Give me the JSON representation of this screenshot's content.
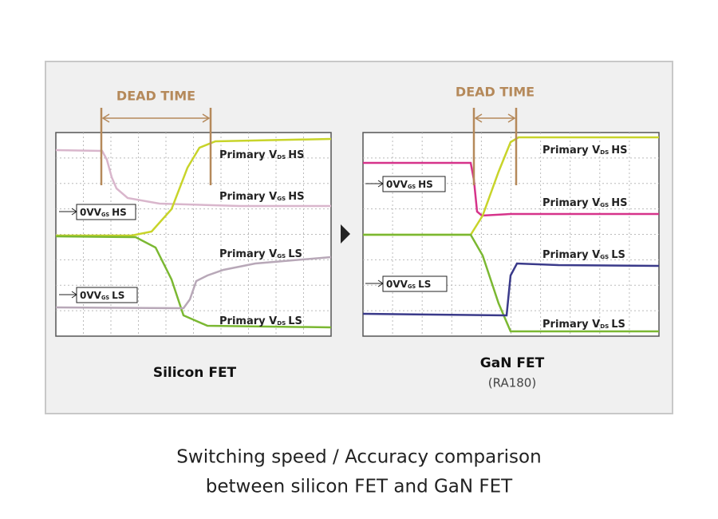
{
  "panels": [
    {
      "dead_time": "DEAD TIME",
      "labels": [
        {
          "prefix": "Primary V",
          "sub": "DS",
          "suffix": "HS"
        },
        {
          "prefix": "Primary V",
          "sub": "GS",
          "suffix": "HS"
        },
        {
          "prefix": "Primary V",
          "sub": "GS",
          "suffix": "LS"
        },
        {
          "prefix": "Primary V",
          "sub": "DS",
          "suffix": "LS"
        }
      ],
      "markers": [
        {
          "prefix": "0VV",
          "sub": "GS",
          "suffix": "HS"
        },
        {
          "prefix": "0VV",
          "sub": "GS",
          "suffix": "LS"
        }
      ],
      "title": "Silicon FET"
    },
    {
      "dead_time": "DEAD TIME",
      "labels": [
        {
          "prefix": "Primary V",
          "sub": "DS",
          "suffix": "HS"
        },
        {
          "prefix": "Primary V",
          "sub": "GS",
          "suffix": "HS"
        },
        {
          "prefix": "Primary V",
          "sub": "GS",
          "suffix": "LS"
        },
        {
          "prefix": "Primary V",
          "sub": "DS",
          "suffix": "LS"
        }
      ],
      "markers": [
        {
          "prefix": "0VV",
          "sub": "GS",
          "suffix": "HS"
        },
        {
          "prefix": "0VV",
          "sub": "GS",
          "suffix": "LS"
        }
      ],
      "title": "GaN FET",
      "subtitle": "(RA180)"
    }
  ],
  "caption": [
    "Switching speed / Accuracy comparison",
    "between silicon FET and GaN FET"
  ]
}
